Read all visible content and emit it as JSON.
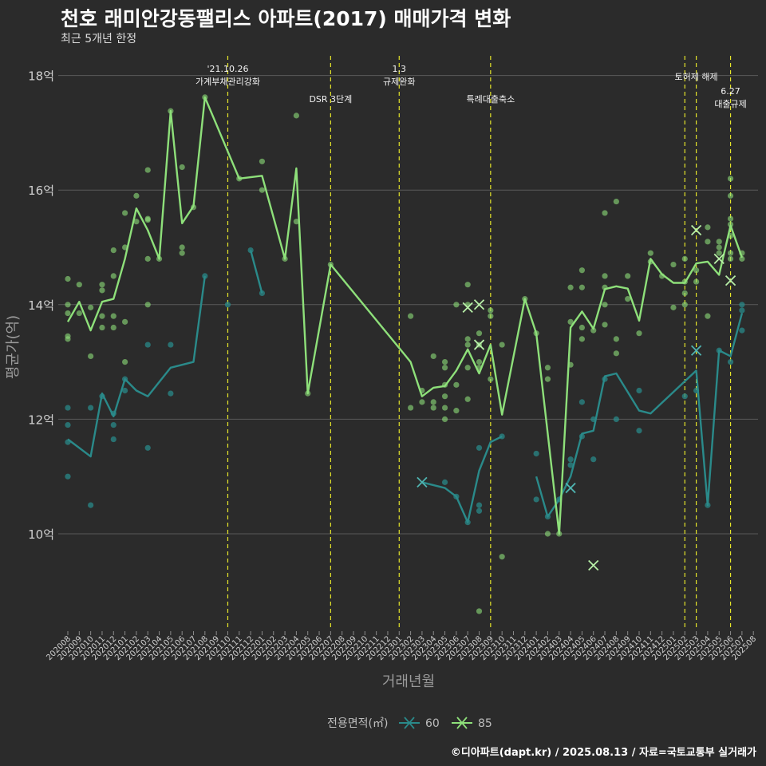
{
  "title": "천호 래미안강동팰리스 아파트(2017) 매매가격 변화",
  "subtitle": "최근 5개년 한정",
  "caption": "©디아파트(dapt.kr) / 2025.08.13 / 자료=국토교통부 실거래가",
  "colors": {
    "s60": "#2a8a8a",
    "s85": "#8ee07a",
    "vline": "#e5e52a",
    "grid": "#5a5a5a",
    "bg": "#2b2b2b"
  },
  "chart_data": {
    "type": "line",
    "xlabel": "거래년월",
    "ylabel": "평균가(억)",
    "ylim": [
      8.3,
      18.5
    ],
    "yticks": [
      10,
      12,
      14,
      16,
      18
    ],
    "ytick_labels": [
      "10억",
      "12억",
      "14억",
      "16억",
      "18억"
    ],
    "categories": [
      "202008",
      "202009",
      "202010",
      "202011",
      "202012",
      "202101",
      "202102",
      "202103",
      "202104",
      "202105",
      "202106",
      "202107",
      "202108",
      "202109",
      "202110",
      "202111",
      "202112",
      "202201",
      "202202",
      "202203",
      "202204",
      "202205",
      "202206",
      "202207",
      "202208",
      "202209",
      "202210",
      "202211",
      "202212",
      "202301",
      "202302",
      "202303",
      "202304",
      "202305",
      "202306",
      "202307",
      "202308",
      "202309",
      "202310",
      "202311",
      "202312",
      "202401",
      "202402",
      "202403",
      "202404",
      "202405",
      "202406",
      "202407",
      "202408",
      "202409",
      "202410",
      "202411",
      "202412",
      "202501",
      "202502",
      "202503",
      "202504",
      "202505",
      "202506",
      "202507",
      "202508"
    ],
    "legend": {
      "title": "전용면적(㎡)",
      "position": "bottom"
    },
    "series": [
      {
        "name": "60",
        "segments": [
          [
            [
              "202008",
              11.65
            ],
            [
              "202010",
              11.35
            ],
            [
              "202011",
              12.45
            ],
            [
              "202012",
              12.05
            ],
            [
              "202101",
              12.7
            ],
            [
              "202102",
              12.5
            ],
            [
              "202103",
              12.4
            ],
            [
              "202105",
              12.9
            ],
            [
              "202107",
              13.0
            ],
            [
              "202108",
              14.5
            ]
          ],
          [
            [
              "202112",
              14.95
            ],
            [
              "202201",
              14.2
            ]
          ],
          [
            [
              "202303",
              10.9
            ],
            [
              "202305",
              10.8
            ],
            [
              "202306",
              10.65
            ],
            [
              "202307",
              10.2
            ],
            [
              "202308",
              11.1
            ],
            [
              "202309",
              11.6
            ],
            [
              "202310",
              11.7
            ]
          ],
          [
            [
              "202401",
              11.0
            ],
            [
              "202402",
              10.3
            ],
            [
              "202403",
              10.6
            ],
            [
              "202404",
              11.0
            ],
            [
              "202405",
              11.75
            ],
            [
              "202406",
              11.8
            ],
            [
              "202407",
              12.75
            ],
            [
              "202408",
              12.8
            ],
            [
              "202410",
              12.15
            ],
            [
              "202411",
              12.1
            ],
            [
              "202503",
              12.85
            ],
            [
              "202504",
              10.5
            ],
            [
              "202505",
              13.2
            ],
            [
              "202506",
              13.1
            ],
            [
              "202507",
              13.85
            ]
          ]
        ]
      },
      {
        "name": "85",
        "segments": [
          [
            [
              "202008",
              13.7
            ],
            [
              "202009",
              14.05
            ],
            [
              "202010",
              13.55
            ],
            [
              "202011",
              14.05
            ],
            [
              "202012",
              14.1
            ],
            [
              "202101",
              14.8
            ],
            [
              "202102",
              15.68
            ],
            [
              "202103",
              15.3
            ],
            [
              "202104",
              14.8
            ],
            [
              "202105",
              17.38
            ],
            [
              "202106",
              15.42
            ],
            [
              "202107",
              15.72
            ],
            [
              "202108",
              17.62
            ],
            [
              "202111",
              16.2
            ],
            [
              "202201",
              16.25
            ],
            [
              "202203",
              14.8
            ],
            [
              "202204",
              16.38
            ],
            [
              "202205",
              12.45
            ],
            [
              "202207",
              14.7
            ],
            [
              "202302",
              13.0
            ],
            [
              "202303",
              12.4
            ],
            [
              "202304",
              12.55
            ],
            [
              "202305",
              12.58
            ],
            [
              "202306",
              12.85
            ],
            [
              "202307",
              13.22
            ],
            [
              "202308",
              12.8
            ],
            [
              "202309",
              13.3
            ],
            [
              "202310",
              12.08
            ],
            [
              "202312",
              14.1
            ],
            [
              "202401",
              13.5
            ],
            [
              "202403",
              10.0
            ],
            [
              "202404",
              13.6
            ],
            [
              "202405",
              13.88
            ],
            [
              "202406",
              13.58
            ],
            [
              "202407",
              14.27
            ],
            [
              "202408",
              14.32
            ],
            [
              "202409",
              14.28
            ],
            [
              "202410",
              13.72
            ],
            [
              "202411",
              14.8
            ],
            [
              "202412",
              14.53
            ],
            [
              "202501",
              14.38
            ],
            [
              "202502",
              14.38
            ],
            [
              "202503",
              14.72
            ],
            [
              "202504",
              14.75
            ],
            [
              "202505",
              14.52
            ],
            [
              "202506",
              15.38
            ],
            [
              "202507",
              14.82
            ]
          ]
        ]
      }
    ],
    "points_60": [
      [
        "202008",
        12.2
      ],
      [
        "202008",
        11.9
      ],
      [
        "202008",
        11.6
      ],
      [
        "202008",
        11.0
      ],
      [
        "202010",
        10.5
      ],
      [
        "202010",
        12.2
      ],
      [
        "202011",
        12.4
      ],
      [
        "202012",
        12.1
      ],
      [
        "202012",
        11.9
      ],
      [
        "202012",
        11.65
      ],
      [
        "202101",
        12.5
      ],
      [
        "202101",
        12.7
      ],
      [
        "202103",
        11.5
      ],
      [
        "202103",
        13.3
      ],
      [
        "202105",
        13.3
      ],
      [
        "202105",
        12.45
      ],
      [
        "202108",
        14.5
      ],
      [
        "202110",
        14.0
      ],
      [
        "202112",
        14.95
      ],
      [
        "202201",
        14.2
      ],
      [
        "202305",
        10.9
      ],
      [
        "202306",
        10.65
      ],
      [
        "202307",
        10.2
      ],
      [
        "202308",
        11.5
      ],
      [
        "202308",
        10.5
      ],
      [
        "202308",
        10.4
      ],
      [
        "202310",
        11.7
      ],
      [
        "202401",
        11.4
      ],
      [
        "202401",
        10.6
      ],
      [
        "202402",
        10.3
      ],
      [
        "202403",
        10.6
      ],
      [
        "202404",
        11.3
      ],
      [
        "202404",
        11.2
      ],
      [
        "202405",
        12.3
      ],
      [
        "202405",
        11.7
      ],
      [
        "202406",
        11.3
      ],
      [
        "202406",
        12.0
      ],
      [
        "202407",
        12.7
      ],
      [
        "202408",
        12.0
      ],
      [
        "202410",
        12.5
      ],
      [
        "202410",
        11.8
      ],
      [
        "202502",
        12.4
      ],
      [
        "202503",
        12.5
      ],
      [
        "202504",
        10.5
      ],
      [
        "202505",
        13.2
      ],
      [
        "202506",
        13.0
      ],
      [
        "202507",
        13.9
      ],
      [
        "202507",
        14.0
      ],
      [
        "202507",
        13.55
      ]
    ],
    "points_85": [
      [
        "202008",
        14.45
      ],
      [
        "202008",
        14.0
      ],
      [
        "202008",
        13.85
      ],
      [
        "202008",
        13.45
      ],
      [
        "202008",
        13.4
      ],
      [
        "202009",
        14.35
      ],
      [
        "202009",
        13.85
      ],
      [
        "202010",
        13.95
      ],
      [
        "202010",
        13.1
      ],
      [
        "202011",
        14.35
      ],
      [
        "202011",
        14.25
      ],
      [
        "202011",
        13.8
      ],
      [
        "202011",
        13.6
      ],
      [
        "202012",
        14.95
      ],
      [
        "202012",
        14.5
      ],
      [
        "202012",
        13.8
      ],
      [
        "202012",
        13.6
      ],
      [
        "202101",
        15.6
      ],
      [
        "202101",
        15.0
      ],
      [
        "202101",
        13.7
      ],
      [
        "202101",
        13.0
      ],
      [
        "202102",
        15.9
      ],
      [
        "202102",
        15.45
      ],
      [
        "202103",
        16.35
      ],
      [
        "202103",
        15.5
      ],
      [
        "202103",
        15.48
      ],
      [
        "202103",
        14.8
      ],
      [
        "202103",
        14.0
      ],
      [
        "202104",
        14.8
      ],
      [
        "202105",
        17.38
      ],
      [
        "202106",
        16.4
      ],
      [
        "202106",
        15.0
      ],
      [
        "202106",
        14.9
      ],
      [
        "202107",
        15.7
      ],
      [
        "202108",
        17.62
      ],
      [
        "202111",
        16.2
      ],
      [
        "202201",
        16.5
      ],
      [
        "202201",
        16.0
      ],
      [
        "202203",
        14.8
      ],
      [
        "202204",
        17.3
      ],
      [
        "202204",
        15.45
      ],
      [
        "202205",
        12.45
      ],
      [
        "202207",
        14.7
      ],
      [
        "202302",
        13.8
      ],
      [
        "202302",
        12.2
      ],
      [
        "202303",
        12.5
      ],
      [
        "202303",
        12.3
      ],
      [
        "202304",
        13.1
      ],
      [
        "202304",
        12.3
      ],
      [
        "202304",
        12.2
      ],
      [
        "202305",
        13.0
      ],
      [
        "202305",
        12.9
      ],
      [
        "202305",
        12.6
      ],
      [
        "202305",
        12.4
      ],
      [
        "202305",
        12.2
      ],
      [
        "202305",
        12.0
      ],
      [
        "202306",
        14.0
      ],
      [
        "202306",
        12.6
      ],
      [
        "202306",
        12.15
      ],
      [
        "202307",
        14.35
      ],
      [
        "202307",
        14.0
      ],
      [
        "202307",
        13.4
      ],
      [
        "202307",
        13.3
      ],
      [
        "202307",
        12.9
      ],
      [
        "202307",
        12.35
      ],
      [
        "202308",
        13.5
      ],
      [
        "202308",
        13.3
      ],
      [
        "202308",
        13.0
      ],
      [
        "202308",
        12.9
      ],
      [
        "202308",
        8.65
      ],
      [
        "202309",
        13.9
      ],
      [
        "202309",
        13.8
      ],
      [
        "202309",
        12.7
      ],
      [
        "202310",
        13.3
      ],
      [
        "202310",
        9.6
      ],
      [
        "202312",
        14.1
      ],
      [
        "202401",
        13.5
      ],
      [
        "202402",
        12.9
      ],
      [
        "202402",
        12.7
      ],
      [
        "202402",
        10.0
      ],
      [
        "202403",
        10.0
      ],
      [
        "202404",
        14.3
      ],
      [
        "202404",
        13.7
      ],
      [
        "202404",
        12.95
      ],
      [
        "202405",
        14.6
      ],
      [
        "202405",
        14.3
      ],
      [
        "202405",
        13.6
      ],
      [
        "202405",
        13.4
      ],
      [
        "202406",
        13.55
      ],
      [
        "202407",
        15.6
      ],
      [
        "202407",
        14.5
      ],
      [
        "202407",
        14.3
      ],
      [
        "202407",
        14.0
      ],
      [
        "202407",
        13.65
      ],
      [
        "202408",
        15.8
      ],
      [
        "202408",
        13.4
      ],
      [
        "202408",
        13.15
      ],
      [
        "202409",
        14.5
      ],
      [
        "202409",
        14.1
      ],
      [
        "202410",
        13.5
      ],
      [
        "202411",
        14.9
      ],
      [
        "202411",
        14.75
      ],
      [
        "202412",
        14.5
      ],
      [
        "202501",
        14.7
      ],
      [
        "202501",
        13.95
      ],
      [
        "202502",
        14.8
      ],
      [
        "202502",
        14.4
      ],
      [
        "202502",
        14.2
      ],
      [
        "202502",
        14.0
      ],
      [
        "202503",
        14.6
      ],
      [
        "202503",
        14.4
      ],
      [
        "202504",
        15.35
      ],
      [
        "202504",
        15.1
      ],
      [
        "202504",
        13.8
      ],
      [
        "202505",
        15.1
      ],
      [
        "202505",
        15.0
      ],
      [
        "202505",
        14.9
      ],
      [
        "202506",
        16.2
      ],
      [
        "202506",
        15.9
      ],
      [
        "202506",
        15.5
      ],
      [
        "202506",
        15.4
      ],
      [
        "202506",
        15.2
      ],
      [
        "202506",
        14.9
      ],
      [
        "202506",
        14.8
      ],
      [
        "202507",
        14.9
      ],
      [
        "202507",
        14.8
      ]
    ],
    "x_markers_60": [
      [
        "202303",
        10.9
      ],
      [
        "202404",
        10.8
      ],
      [
        "202503",
        13.2
      ]
    ],
    "x_markers_85": [
      [
        "202307",
        13.95
      ],
      [
        "202308",
        14.0
      ],
      [
        "202308",
        13.3
      ],
      [
        "202406",
        9.45
      ],
      [
        "202503",
        15.3
      ],
      [
        "202505",
        14.8
      ],
      [
        "202506",
        14.42
      ]
    ],
    "events": [
      {
        "x": "202110",
        "labels": [
          "'21.10.26",
          "가계부채관리강화"
        ]
      },
      {
        "x": "202207",
        "labels": [
          "DSR 3단계"
        ]
      },
      {
        "x": "202301",
        "labels": [
          "1.3",
          "규제완화"
        ]
      },
      {
        "x": "202309",
        "labels": [
          "특례대출축소"
        ]
      },
      {
        "x": "202502",
        "labels": []
      },
      {
        "x": "202503",
        "labels": [
          "토허제 해제"
        ]
      },
      {
        "x": "202506",
        "labels": [
          "6.27",
          "대출규제"
        ]
      }
    ]
  }
}
